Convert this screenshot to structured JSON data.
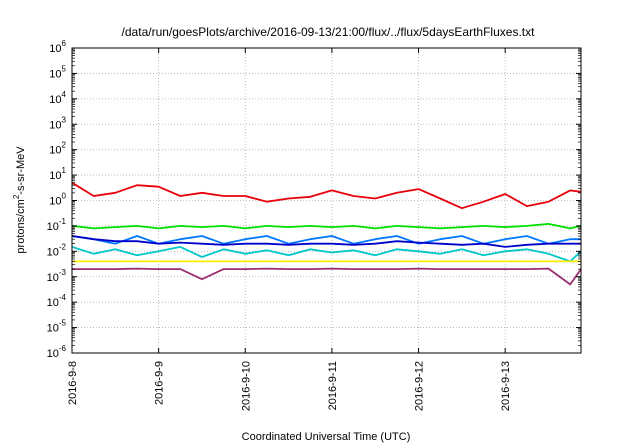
{
  "chart_data": {
    "type": "line",
    "title": "/data/run/goesPlots/archive/2016-09-13/21:00/flux/../flux/5daysEarthFluxes.txt",
    "xlabel": "Coordinated Universal Time (UTC)",
    "ylabel_main": "protons/cm",
    "ylabel_sup": "2",
    "ylabel_rest": "-s-sr-MeV",
    "yscale": "log",
    "ylim": [
      -6,
      6
    ],
    "y_ticks": [
      {
        "base": "10",
        "exp": "-6",
        "value": -6
      },
      {
        "base": "10",
        "exp": "-5",
        "value": -5
      },
      {
        "base": "10",
        "exp": "-4",
        "value": -4
      },
      {
        "base": "10",
        "exp": "-3",
        "value": -3
      },
      {
        "base": "10",
        "exp": "-2",
        "value": -2
      },
      {
        "base": "10",
        "exp": "-1",
        "value": -1
      },
      {
        "base": "10",
        "exp": "0",
        "value": 0
      },
      {
        "base": "10",
        "exp": "1",
        "value": 1
      },
      {
        "base": "10",
        "exp": "2",
        "value": 2
      },
      {
        "base": "10",
        "exp": "3",
        "value": 3
      },
      {
        "base": "10",
        "exp": "4",
        "value": 4
      },
      {
        "base": "10",
        "exp": "5",
        "value": 5
      },
      {
        "base": "10",
        "exp": "6",
        "value": 6
      }
    ],
    "xlim": [
      "2016-09-08 00:00",
      "2016-09-13 21:00"
    ],
    "x_ticks": [
      {
        "label": "2016-9-8",
        "date": "2016-09-08"
      },
      {
        "label": "2016-9-9",
        "date": "2016-09-09"
      },
      {
        "label": "2016-9-10",
        "date": "2016-09-10"
      },
      {
        "label": "2016-9-11",
        "date": "2016-09-11"
      },
      {
        "label": "2016-9-12",
        "date": "2016-09-12"
      },
      {
        "label": "2016-9-13",
        "date": "2016-09-13"
      }
    ],
    "grid": true,
    "x": [
      "2016-09-08 00:00",
      "2016-09-08 06:00",
      "2016-09-08 12:00",
      "2016-09-08 18:00",
      "2016-09-09 00:00",
      "2016-09-09 06:00",
      "2016-09-09 12:00",
      "2016-09-09 18:00",
      "2016-09-10 00:00",
      "2016-09-10 06:00",
      "2016-09-10 12:00",
      "2016-09-10 18:00",
      "2016-09-11 00:00",
      "2016-09-11 06:00",
      "2016-09-11 12:00",
      "2016-09-11 18:00",
      "2016-09-12 00:00",
      "2016-09-12 06:00",
      "2016-09-12 12:00",
      "2016-09-12 18:00",
      "2016-09-13 00:00",
      "2016-09-13 06:00",
      "2016-09-13 12:00",
      "2016-09-13 18:00",
      "2016-09-13 21:00"
    ],
    "series": [
      {
        "color": "#e8000b",
        "values": [
          5,
          1.5,
          2,
          4,
          3.5,
          1.5,
          2,
          1.5,
          1.5,
          0.9,
          1.2,
          1.4,
          2.5,
          1.5,
          1.2,
          2,
          2.8,
          1.2,
          0.5,
          0.9,
          1.8,
          0.6,
          0.9,
          2.5,
          2.2
        ]
      },
      {
        "color": "#00e000",
        "values": [
          0.1,
          0.08,
          0.09,
          0.1,
          0.08,
          0.1,
          0.09,
          0.1,
          0.08,
          0.1,
          0.09,
          0.1,
          0.09,
          0.1,
          0.08,
          0.1,
          0.09,
          0.08,
          0.09,
          0.1,
          0.09,
          0.1,
          0.12,
          0.08,
          0.1
        ]
      },
      {
        "color": "#0078ff",
        "values": [
          0.04,
          0.03,
          0.02,
          0.04,
          0.02,
          0.03,
          0.04,
          0.02,
          0.03,
          0.04,
          0.02,
          0.03,
          0.04,
          0.02,
          0.03,
          0.04,
          0.02,
          0.03,
          0.04,
          0.02,
          0.03,
          0.04,
          0.02,
          0.03,
          0.03
        ]
      },
      {
        "color": "#0000cc",
        "values": [
          0.04,
          0.03,
          0.025,
          0.025,
          0.02,
          0.022,
          0.02,
          0.018,
          0.02,
          0.02,
          0.018,
          0.02,
          0.02,
          0.018,
          0.02,
          0.025,
          0.022,
          0.02,
          0.018,
          0.02,
          0.015,
          0.018,
          0.02,
          0.02,
          0.02
        ]
      },
      {
        "color": "#00c8c8",
        "values": [
          0.015,
          0.008,
          0.012,
          0.007,
          0.01,
          0.015,
          0.006,
          0.012,
          0.008,
          0.011,
          0.007,
          0.012,
          0.009,
          0.011,
          0.007,
          0.012,
          0.01,
          0.008,
          0.012,
          0.007,
          0.01,
          0.012,
          0.008,
          0.004,
          0.01
        ]
      },
      {
        "color": "#ffeb00",
        "values": [
          0.004,
          0.004,
          0.004,
          0.004,
          0.004,
          0.004,
          0.004,
          0.004,
          0.004,
          0.004,
          0.004,
          0.004,
          0.004,
          0.004,
          0.004,
          0.004,
          0.004,
          0.004,
          0.004,
          0.004,
          0.004,
          0.004,
          0.004,
          0.004,
          0.004
        ]
      },
      {
        "color": "#9b2d6e",
        "values": [
          0.002,
          0.002,
          0.002,
          0.0021,
          0.002,
          0.002,
          0.0008,
          0.002,
          0.002,
          0.0021,
          0.002,
          0.002,
          0.0021,
          0.002,
          0.002,
          0.002,
          0.0021,
          0.002,
          0.002,
          0.002,
          0.002,
          0.002,
          0.0021,
          0.0005,
          0.002
        ]
      }
    ]
  }
}
